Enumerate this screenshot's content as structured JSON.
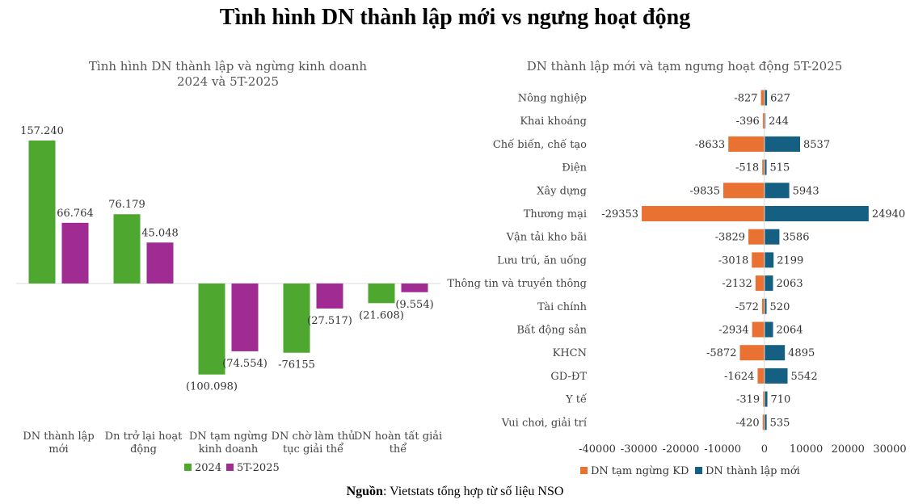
{
  "title": "Tình hình DN thành lập mới vs ngưng hoạt động",
  "source": {
    "label": "Nguồn",
    "text": ": Vietstats tổng hợp từ số liệu NSO"
  },
  "colors": {
    "green": "#4ea72e",
    "purple": "#a02b93",
    "orange": "#e97132",
    "blue": "#156082",
    "axis": "#d9d9d9"
  },
  "chart_data": [
    {
      "type": "bar",
      "title": [
        "Tình hình DN thành lập và ngừng kinh doanh",
        "2024 và 5T-2025"
      ],
      "categories": [
        [
          "DN thành lập",
          "mới"
        ],
        [
          "Dn trở lại hoạt",
          "động"
        ],
        [
          "DN tạm ngừng",
          "kinh doanh"
        ],
        [
          "DN chờ làm thủ",
          "tục giải thể"
        ],
        [
          "DN hoàn tất giải",
          "thể"
        ]
      ],
      "series": [
        {
          "name": "2024",
          "values": [
            157240,
            76179,
            -100098,
            -76155,
            -21608
          ],
          "labels": [
            "157.240",
            "76.179",
            "(100.098)",
            "-76155",
            "(21.608)"
          ]
        },
        {
          "name": "5T-2025",
          "values": [
            66764,
            45048,
            -74554,
            -27517,
            -9554
          ],
          "labels": [
            "66.764",
            "45.048",
            "(74.554)",
            "(27.517)",
            "(9.554)"
          ]
        }
      ],
      "legend": "bottom",
      "grid": false
    },
    {
      "type": "bar",
      "orientation": "horizontal",
      "title": "DN thành lập mới và tạm ngưng hoạt động 5T-2025",
      "categories": [
        "Nông nghiệp",
        "Khai khoáng",
        "Chế biến, chế tạo",
        "Điện",
        "Xây dựng",
        "Thương mại",
        "Vận tải kho bãi",
        "Lưu trú, ăn uống",
        "Thông tin và truyền thông",
        "Tài chính",
        "Bất động sản",
        "KHCN",
        "GD-ĐT",
        "Y tế",
        "Vui chơi, giải trí"
      ],
      "series": [
        {
          "name": "DN tạm ngừng KD",
          "values": [
            -827,
            -396,
            -8633,
            -518,
            -9835,
            -29353,
            -3829,
            -3018,
            -2132,
            -572,
            -2934,
            -5872,
            -1624,
            -319,
            -420
          ]
        },
        {
          "name": "DN thành lập mới",
          "values": [
            627,
            244,
            8537,
            515,
            5943,
            24940,
            3586,
            2199,
            2063,
            520,
            2064,
            4895,
            5542,
            710,
            535
          ]
        }
      ],
      "xlim": [
        -40000,
        30000
      ],
      "xticks": [
        -40000,
        -30000,
        -20000,
        -10000,
        0,
        10000,
        20000,
        30000
      ],
      "legend": "bottom",
      "grid": false
    }
  ]
}
